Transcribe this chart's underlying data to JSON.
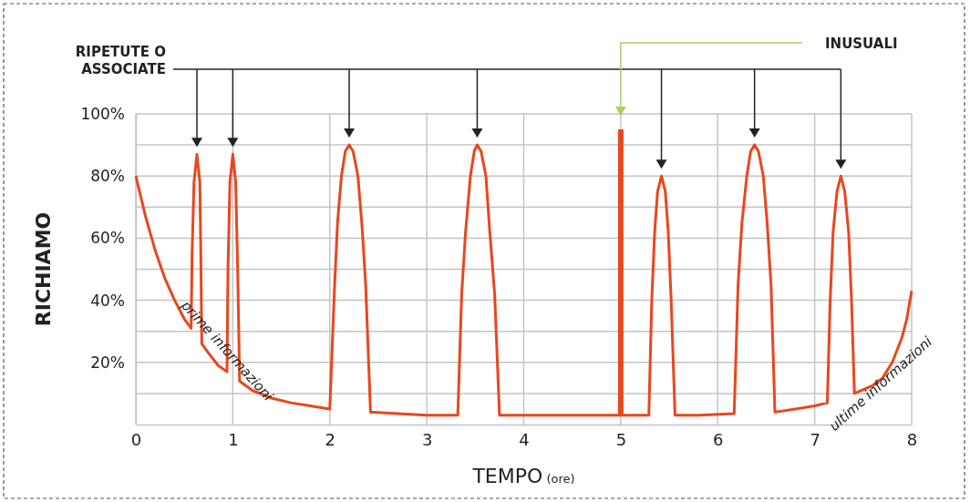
{
  "chart_data": {
    "type": "line",
    "xlabel": "TEMPO (ore)",
    "ylabel": "RICHIAMO",
    "xlim": [
      0,
      8
    ],
    "xticks": [
      0,
      1,
      2,
      3,
      4,
      5,
      6,
      7,
      8
    ],
    "ylim": [
      0,
      100
    ],
    "yticks": [
      {
        "value": 10,
        "label": null
      },
      {
        "value": 20,
        "label": "20%"
      },
      {
        "value": 30,
        "label": null
      },
      {
        "value": 40,
        "label": "40%"
      },
      {
        "value": 50,
        "label": null
      },
      {
        "value": 60,
        "label": "60%"
      },
      {
        "value": 70,
        "label": null
      },
      {
        "value": 80,
        "label": "80%"
      },
      {
        "value": 90,
        "label": null
      },
      {
        "value": 100,
        "label": "100%"
      }
    ],
    "grid": true,
    "marker": "none",
    "line_style": "solid",
    "series": [
      {
        "color": "#e8471e",
        "x": [
          0,
          0.1,
          0.2,
          0.3,
          0.4,
          0.5,
          0.57,
          0.58,
          0.6,
          0.63,
          0.66,
          0.67,
          0.68,
          0.75,
          0.85,
          0.94,
          0.95,
          0.97,
          1.0,
          1.03,
          1.05,
          1.07,
          1.2,
          1.4,
          1.6,
          1.8,
          2.0,
          2.05,
          2.08,
          2.12,
          2.16,
          2.2,
          2.24,
          2.29,
          2.33,
          2.37,
          2.42,
          2.7,
          3.0,
          3.32,
          3.36,
          3.4,
          3.45,
          3.49,
          3.52,
          3.56,
          3.61,
          3.65,
          3.7,
          3.75,
          4.0,
          4.5,
          5.0,
          5.29,
          5.32,
          5.35,
          5.38,
          5.42,
          5.46,
          5.49,
          5.52,
          5.56,
          5.8,
          6.17,
          6.21,
          6.25,
          6.3,
          6.34,
          6.38,
          6.42,
          6.47,
          6.51,
          6.55,
          6.59,
          6.8,
          7.0,
          7.13,
          7.16,
          7.19,
          7.23,
          7.27,
          7.31,
          7.35,
          7.38,
          7.41,
          7.6,
          7.7,
          7.8,
          7.9,
          7.95,
          8.0
        ],
        "values": [
          80,
          67,
          56,
          47,
          40,
          34,
          31,
          55,
          78,
          87,
          78,
          55,
          26,
          23,
          19,
          17,
          50,
          78,
          87,
          78,
          50,
          14,
          11,
          8.5,
          7,
          6,
          5,
          45,
          65,
          80,
          88,
          90,
          88,
          80,
          65,
          45,
          4,
          3.5,
          3,
          3,
          42,
          62,
          80,
          88,
          90,
          88,
          80,
          62,
          42,
          3,
          3,
          3,
          3,
          3,
          40,
          62,
          75,
          80,
          75,
          62,
          40,
          3,
          3,
          3.5,
          45,
          65,
          80,
          88,
          90,
          88,
          80,
          65,
          45,
          4,
          5,
          6,
          7,
          40,
          62,
          75,
          80,
          75,
          62,
          40,
          10,
          12.6,
          15,
          20,
          28,
          34,
          43
        ]
      },
      {
        "color": "#e8471e",
        "x": [
          5,
          5
        ],
        "values": [
          3,
          95
        ]
      }
    ],
    "annotations": [
      "RIPETUTE O ASSOCIATE",
      "INUSUALI",
      {
        "text": "prime informazioni",
        "x": 0.55,
        "y": 31
      },
      {
        "text": "ultime informazioni",
        "x": 7.6,
        "y": 12.6
      }
    ]
  }
}
